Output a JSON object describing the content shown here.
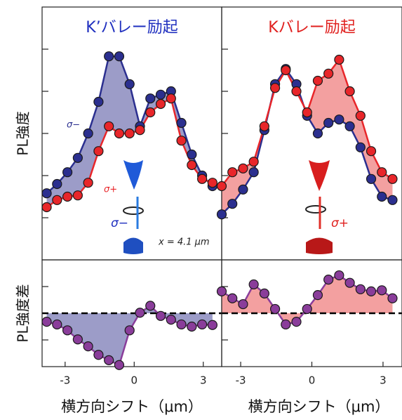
{
  "chart_data": [
    {
      "type": "line",
      "title": "K’バレー励起",
      "title_color": "#1f2fbf",
      "ylabel": "PL強度",
      "x": [
        -3.8,
        -3.35,
        -2.9,
        -2.45,
        -2.0,
        -1.55,
        -1.1,
        -0.65,
        -0.2,
        0.25,
        0.7,
        1.15,
        1.6,
        2.05,
        2.5,
        2.95,
        3.4
      ],
      "series": [
        {
          "name": "σ−",
          "color": "#2b2f8f",
          "values": [
            1.58,
            1.8,
            2.08,
            2.42,
            3.0,
            3.75,
            4.83,
            4.83,
            4.17,
            3.17,
            3.83,
            3.92,
            4.0,
            3.25,
            2.5,
            2.0,
            1.75
          ]
        },
        {
          "name": "σ+",
          "color": "#e8262a",
          "values": [
            1.25,
            1.42,
            1.5,
            1.53,
            1.83,
            2.58,
            3.17,
            3.0,
            3.0,
            3.08,
            3.5,
            3.7,
            3.83,
            2.83,
            2.25,
            1.92,
            1.83
          ]
        }
      ],
      "fill": "#9c9cc8",
      "xlim": [
        -4,
        3.8
      ],
      "ylim": [
        0,
        6
      ],
      "yticks": [
        1,
        2,
        3,
        4,
        5
      ],
      "annotations": [
        "σ−",
        "x = 4.1 μm"
      ]
    },
    {
      "type": "line",
      "title": "Kバレー励起",
      "title_color": "#e0201e",
      "x": [
        -3.8,
        -3.35,
        -2.9,
        -2.45,
        -2.0,
        -1.55,
        -1.1,
        -0.65,
        -0.2,
        0.25,
        0.7,
        1.15,
        1.6,
        2.05,
        2.5,
        2.95,
        3.4
      ],
      "series": [
        {
          "color": "#2b2f8f",
          "values": [
            1.08,
            1.33,
            1.67,
            2.08,
            3.08,
            4.17,
            4.53,
            4.17,
            3.42,
            3.0,
            3.25,
            3.33,
            3.17,
            2.67,
            1.92,
            1.5,
            1.42
          ]
        },
        {
          "color": "#e8262a",
          "values": [
            1.75,
            2.08,
            2.17,
            2.33,
            3.17,
            4.08,
            4.5,
            4.0,
            3.5,
            4.25,
            4.42,
            4.75,
            4.0,
            3.42,
            2.58,
            2.08,
            1.92
          ]
        }
      ],
      "fill": "#f3a0a0",
      "xlim": [
        -3.8,
        3.8
      ],
      "ylim": [
        0,
        6
      ],
      "yticks": [
        1,
        2,
        3,
        4,
        5
      ],
      "annotations": [
        "σ+"
      ]
    },
    {
      "type": "line",
      "ylabel": "PL強度差",
      "xlabel": "横方向シフト（μm）",
      "x": [
        -3.8,
        -3.35,
        -2.9,
        -2.45,
        -2.0,
        -1.55,
        -1.1,
        -0.65,
        -0.2,
        0.25,
        0.7,
        1.15,
        1.6,
        2.05,
        2.5,
        2.95,
        3.4
      ],
      "values": [
        -0.16,
        -0.21,
        -0.32,
        -0.49,
        -0.62,
        -0.78,
        -0.88,
        -0.97,
        -0.32,
        0.01,
        0.14,
        -0.05,
        -0.12,
        -0.21,
        -0.25,
        -0.21,
        -0.22
      ],
      "color": "#8a3d9a",
      "fill": "#9c9cc8",
      "hline": 0,
      "xlim": [
        -4,
        3.8
      ],
      "ylim": [
        -1,
        1
      ],
      "xticks": [
        -3,
        0,
        3
      ],
      "yticks": [
        -0.5,
        0.5
      ]
    },
    {
      "type": "line",
      "xlabel": "横方向シフト（μm）",
      "x": [
        -3.8,
        -3.35,
        -2.9,
        -2.45,
        -2.0,
        -1.55,
        -1.1,
        -0.65,
        -0.2,
        0.25,
        0.7,
        1.15,
        1.6,
        2.05,
        2.5,
        2.95,
        3.4
      ],
      "values": [
        0.41,
        0.28,
        0.17,
        0.54,
        0.37,
        0.08,
        -0.21,
        -0.16,
        0.08,
        0.34,
        0.63,
        0.71,
        0.57,
        0.45,
        0.41,
        0.43,
        0.28
      ],
      "color": "#8a3d9a",
      "fill": "#f3a0a0",
      "hline": 0,
      "xlim": [
        -3.8,
        3.8
      ],
      "ylim": [
        -1,
        1
      ],
      "xticks": [
        -3,
        0,
        3
      ],
      "yticks": [
        -0.5,
        0.5
      ]
    }
  ]
}
